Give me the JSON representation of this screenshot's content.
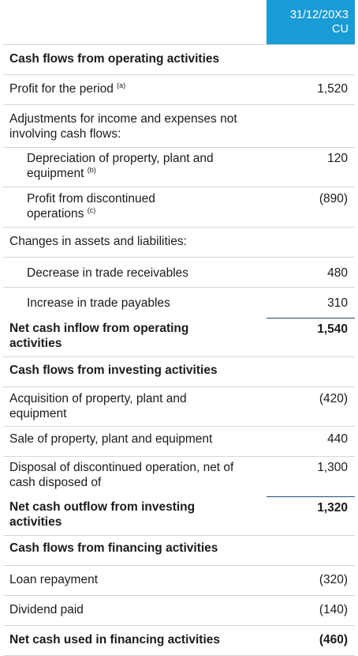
{
  "header": {
    "period": "31/12/20X3",
    "unit": "CU"
  },
  "rows": [
    {
      "label": "Cash flows from operating activities",
      "value": ""
    },
    {
      "label": "Profit for the period",
      "note": "(a)",
      "value": "1,520"
    },
    {
      "label": "Adjustments for income and expenses not involving cash flows:",
      "value": ""
    },
    {
      "label": "Depreciation of property, plant and equipment",
      "note": "(b)",
      "value": "120"
    },
    {
      "label": "Profit from discontinued operations",
      "note": "(c)",
      "value": "(890)"
    },
    {
      "label": "Changes in assets and liabilities:",
      "value": ""
    },
    {
      "label": "Decrease in trade receivables",
      "value": "480"
    },
    {
      "label": "Increase in trade payables",
      "value": "310"
    },
    {
      "label": "Net cash inflow from operating activities",
      "value": "1,540"
    },
    {
      "label": "Cash flows from investing activities",
      "value": ""
    },
    {
      "label": "Acquisition of property, plant and equipment",
      "value": "(420)"
    },
    {
      "label": "Sale of property, plant and equipment",
      "value": "440"
    },
    {
      "label": "Disposal of discontinued operation, net of cash disposed of",
      "value": "1,300"
    },
    {
      "label": "Net cash outflow from investing activities",
      "value": "1,320"
    },
    {
      "label": "Cash flows from financing activities",
      "value": ""
    },
    {
      "label": "Loan repayment",
      "value": "(320)"
    },
    {
      "label": "Dividend paid",
      "value": "(140)"
    },
    {
      "label": "Net cash used in financing activities",
      "value": "(460)"
    }
  ]
}
